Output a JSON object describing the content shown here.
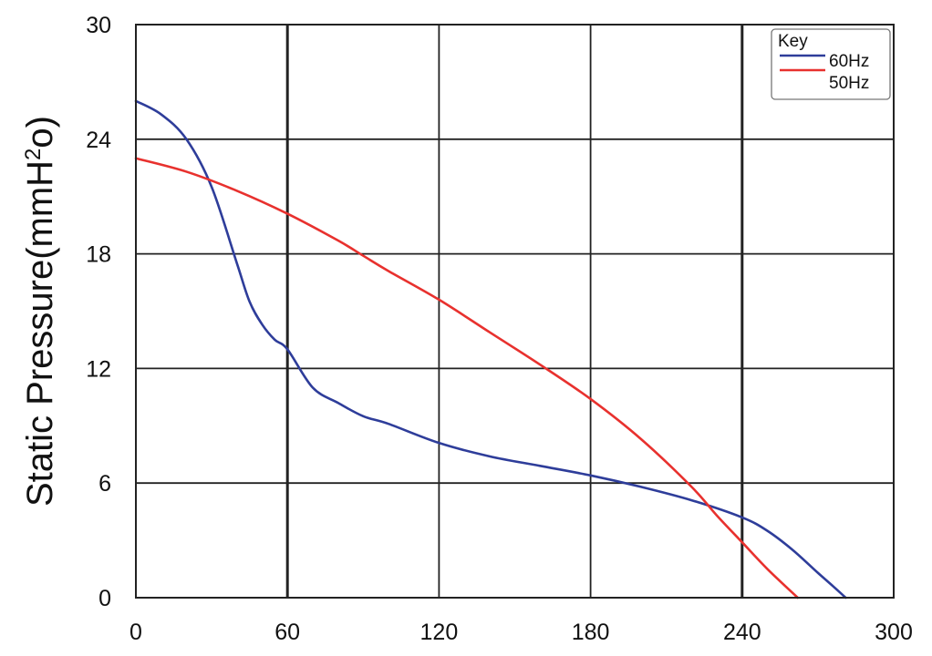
{
  "chart_data": {
    "type": "line",
    "title": "",
    "xlabel": "",
    "ylabel": "Static Pressure(mmH",
    "ylabel_sup": "2",
    "ylabel_tail": "o)",
    "xlim": [
      0,
      300
    ],
    "ylim": [
      0,
      30
    ],
    "x_ticks": [
      0,
      60,
      120,
      180,
      240,
      300
    ],
    "y_ticks": [
      0,
      6,
      12,
      18,
      24,
      30
    ],
    "x_tick_labels": [
      "0",
      "60",
      "120",
      "180",
      "240",
      "300"
    ],
    "y_tick_labels": [
      "0",
      "6",
      "12",
      "18",
      "24",
      "30"
    ],
    "grid": true,
    "legend": {
      "title": "Key",
      "placement": "top-right"
    },
    "series": [
      {
        "name": "60Hz",
        "color": "#2e3d9a",
        "x": [
          0,
          10,
          20,
          30,
          40,
          45,
          50,
          55,
          60,
          70,
          80,
          90,
          100,
          120,
          140,
          160,
          180,
          200,
          220,
          240,
          250,
          260,
          270,
          276,
          281
        ],
        "y": [
          26.0,
          25.3,
          24.0,
          21.5,
          17.5,
          15.5,
          14.3,
          13.5,
          13.0,
          11.0,
          10.2,
          9.5,
          9.1,
          8.1,
          7.4,
          6.9,
          6.4,
          5.8,
          5.1,
          4.2,
          3.5,
          2.5,
          1.3,
          0.6,
          0.0
        ]
      },
      {
        "name": "50Hz",
        "color": "#e8312e",
        "x": [
          0,
          20,
          40,
          60,
          80,
          90,
          100,
          120,
          140,
          160,
          180,
          200,
          220,
          230,
          240,
          250,
          262
        ],
        "y": [
          23.0,
          22.3,
          21.3,
          20.1,
          18.7,
          17.9,
          17.1,
          15.6,
          13.9,
          12.2,
          10.4,
          8.3,
          5.8,
          4.3,
          2.9,
          1.5,
          0.0
        ]
      }
    ]
  }
}
